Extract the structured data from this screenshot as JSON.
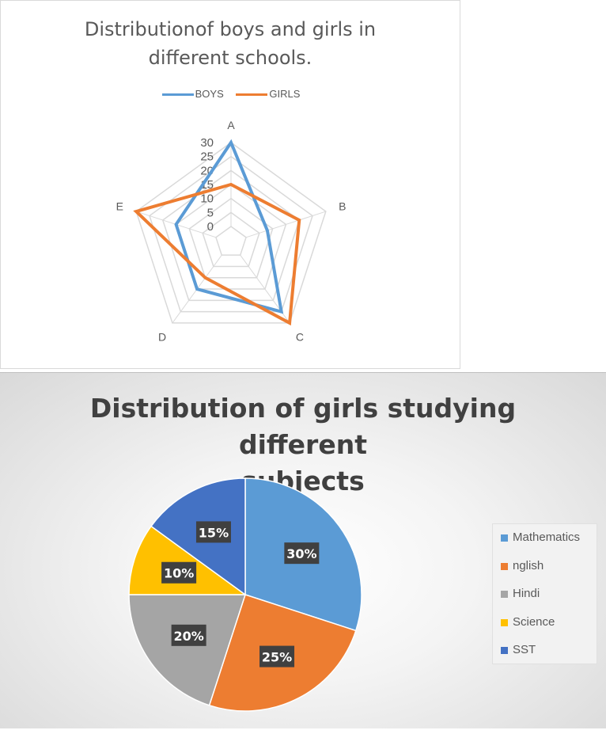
{
  "colors": {
    "boys": "#5b9bd5",
    "girls": "#ed7d31",
    "grid": "#d9d9d9",
    "label_text": "#595959"
  },
  "chart_data": [
    {
      "type": "radar",
      "title": "Distributionof boys and girls in different schools.",
      "title_lines": [
        "Distributionof boys and girls in",
        "different schools."
      ],
      "categories": [
        "A",
        "B",
        "C",
        "D",
        "E"
      ],
      "series": [
        {
          "name": "BOYS",
          "color": "#5b9bd5",
          "values": [
            30,
            8,
            25,
            15,
            15
          ]
        },
        {
          "name": "GIRLS",
          "color": "#ed7d31",
          "values": [
            15,
            20,
            30,
            10,
            30
          ]
        }
      ],
      "radial_ticks": [
        "0",
        "5",
        "10",
        "15",
        "20",
        "25",
        "30"
      ],
      "rmin": 0,
      "rmax": 30,
      "legend_placement": "top",
      "grid": true
    },
    {
      "type": "pie",
      "title": "Distribution of girls studying different subjects",
      "title_lines": [
        "Distribution of girls studying different",
        "subjects"
      ],
      "categories": [
        "Mathematics",
        "nglish",
        "Hindi",
        "Science",
        "SST"
      ],
      "values": [
        30,
        25,
        20,
        10,
        15
      ],
      "data_labels": [
        "30%",
        "25%",
        "20%",
        "10%",
        "15%"
      ],
      "colors": [
        "#5b9bd5",
        "#ed7d31",
        "#a5a5a5",
        "#ffc000",
        "#4472c4"
      ],
      "legend_placement": "right"
    }
  ]
}
